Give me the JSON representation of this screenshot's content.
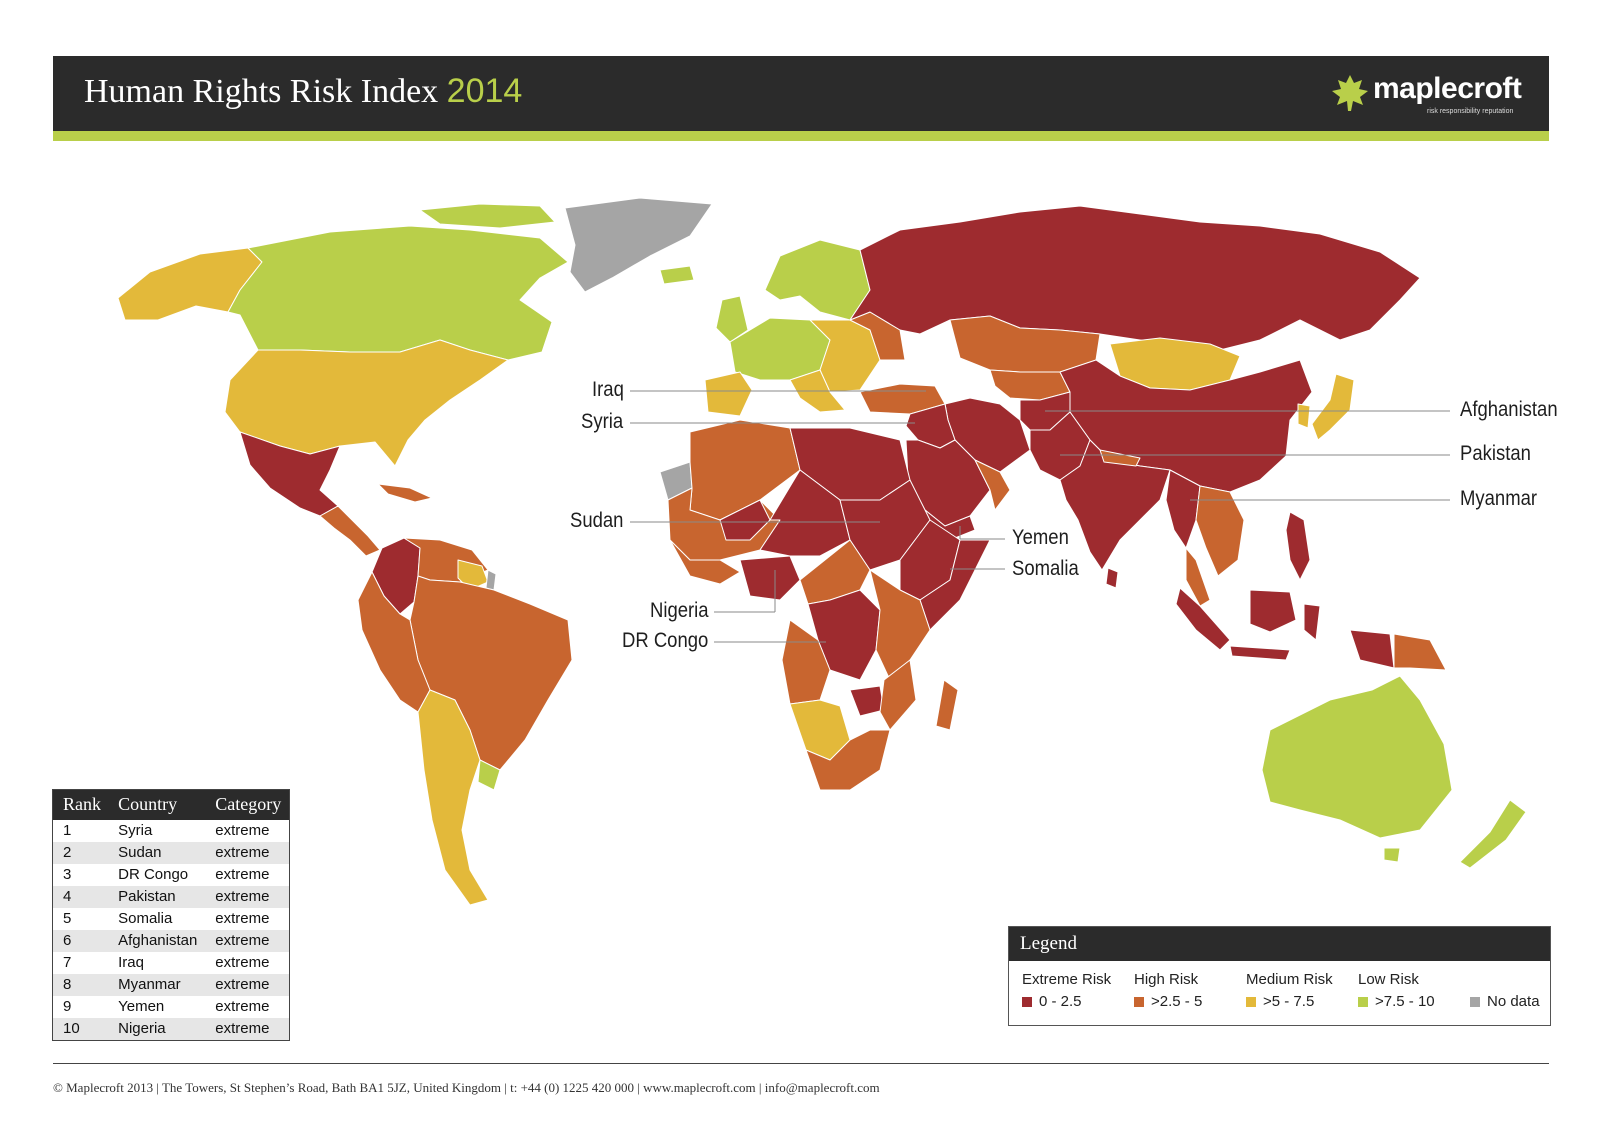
{
  "header": {
    "title": "Human Rights Risk Index",
    "year": "2014",
    "logo_text": "maplecroft",
    "logo_tagline": "risk responsibility reputation"
  },
  "colors": {
    "extreme": "#9e2b2f",
    "high": "#c8652f",
    "medium": "#e3b93a",
    "low": "#b9cf4a",
    "nodata": "#a5a5a5",
    "header_bg": "#2b2b2b",
    "accent": "#b9cf4a"
  },
  "callouts": {
    "iraq": "Iraq",
    "syria": "Syria",
    "sudan": "Sudan",
    "nigeria": "Nigeria",
    "dr_congo": "DR Congo",
    "afghanistan": "Afghanistan",
    "pakistan": "Pakistan",
    "myanmar": "Myanmar",
    "yemen": "Yemen",
    "somalia": "Somalia"
  },
  "ranking": {
    "headers": [
      "Rank",
      "Country",
      "Category"
    ],
    "rows": [
      {
        "rank": "1",
        "country": "Syria",
        "category": "extreme"
      },
      {
        "rank": "2",
        "country": "Sudan",
        "category": "extreme"
      },
      {
        "rank": "3",
        "country": "DR Congo",
        "category": "extreme"
      },
      {
        "rank": "4",
        "country": "Pakistan",
        "category": "extreme"
      },
      {
        "rank": "5",
        "country": "Somalia",
        "category": "extreme"
      },
      {
        "rank": "6",
        "country": "Afghanistan",
        "category": "extreme"
      },
      {
        "rank": "7",
        "country": "Iraq",
        "category": "extreme"
      },
      {
        "rank": "8",
        "country": "Myanmar",
        "category": "extreme"
      },
      {
        "rank": "9",
        "country": "Yemen",
        "category": "extreme"
      },
      {
        "rank": "10",
        "country": "Nigeria",
        "category": "extreme"
      }
    ]
  },
  "legend": {
    "title": "Legend",
    "items": [
      {
        "category": "Extreme Risk",
        "range": "0 - 2.5",
        "color": "#9e2b2f"
      },
      {
        "category": "High Risk",
        "range": ">2.5 - 5",
        "color": "#c8652f"
      },
      {
        "category": "Medium Risk",
        "range": ">5 - 7.5",
        "color": "#e3b93a"
      },
      {
        "category": "Low Risk",
        "range": ">7.5 - 10",
        "color": "#b9cf4a"
      },
      {
        "category": "",
        "range": "No data",
        "color": "#a5a5a5"
      }
    ]
  },
  "footer": "© Maplecroft 2013 | The Towers, St Stephen’s Road, Bath BA1 5JZ, United Kingdom | t: +44 (0) 1225 420 000 | www.maplecroft.com | info@maplecroft.com"
}
